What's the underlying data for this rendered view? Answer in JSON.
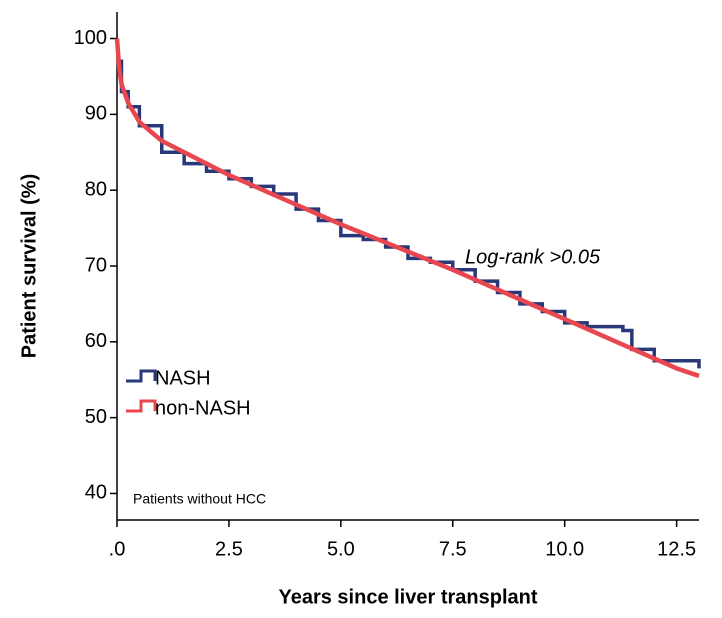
{
  "chart_data": {
    "type": "line",
    "x_label": "Years since liver transplant",
    "y_label": "Patient survival (%)",
    "annotations": [
      "Log-rank >0.05",
      "Patients without HCC"
    ],
    "xlim": [
      0,
      13
    ],
    "ylim": [
      36.5,
      103.5
    ],
    "xticks": [
      {
        "value": 0,
        "label": ".0"
      },
      2.5,
      {
        "value": 5,
        "label": "5.0"
      },
      7.5,
      {
        "value": 10,
        "label": "10.0"
      },
      12.5
    ],
    "yticks": [
      40,
      50,
      60,
      70,
      80,
      90,
      100
    ],
    "series": [
      {
        "name": "NASH",
        "color": "#283878",
        "step": true,
        "x": [
          0,
          0.1,
          0.25,
          0.5,
          1,
          1.5,
          2,
          2.5,
          3,
          3.5,
          4,
          4.5,
          5,
          5.5,
          6,
          6.5,
          7,
          7.5,
          8,
          8.5,
          9,
          9.5,
          10,
          10.5,
          11,
          11.3,
          11.5,
          12,
          13
        ],
        "values": [
          97,
          93,
          91,
          88.5,
          85,
          83.5,
          82.5,
          81.5,
          80.5,
          79.5,
          77.5,
          76,
          74,
          73.5,
          72.5,
          71,
          70.5,
          69.5,
          68,
          66.5,
          65,
          64,
          62.5,
          62,
          62,
          61.5,
          59,
          57.5,
          56.5
        ]
      },
      {
        "name": "non-NASH",
        "color": "#e8474f",
        "step": false,
        "x": [
          0,
          0.05,
          0.1,
          0.25,
          0.5,
          1,
          1.5,
          2.5,
          5,
          7.5,
          10,
          12.5,
          13
        ],
        "values": [
          100,
          96,
          94,
          91.5,
          89,
          86.5,
          85,
          82,
          75.5,
          69.5,
          63,
          56.5,
          55.5
        ]
      }
    ]
  }
}
